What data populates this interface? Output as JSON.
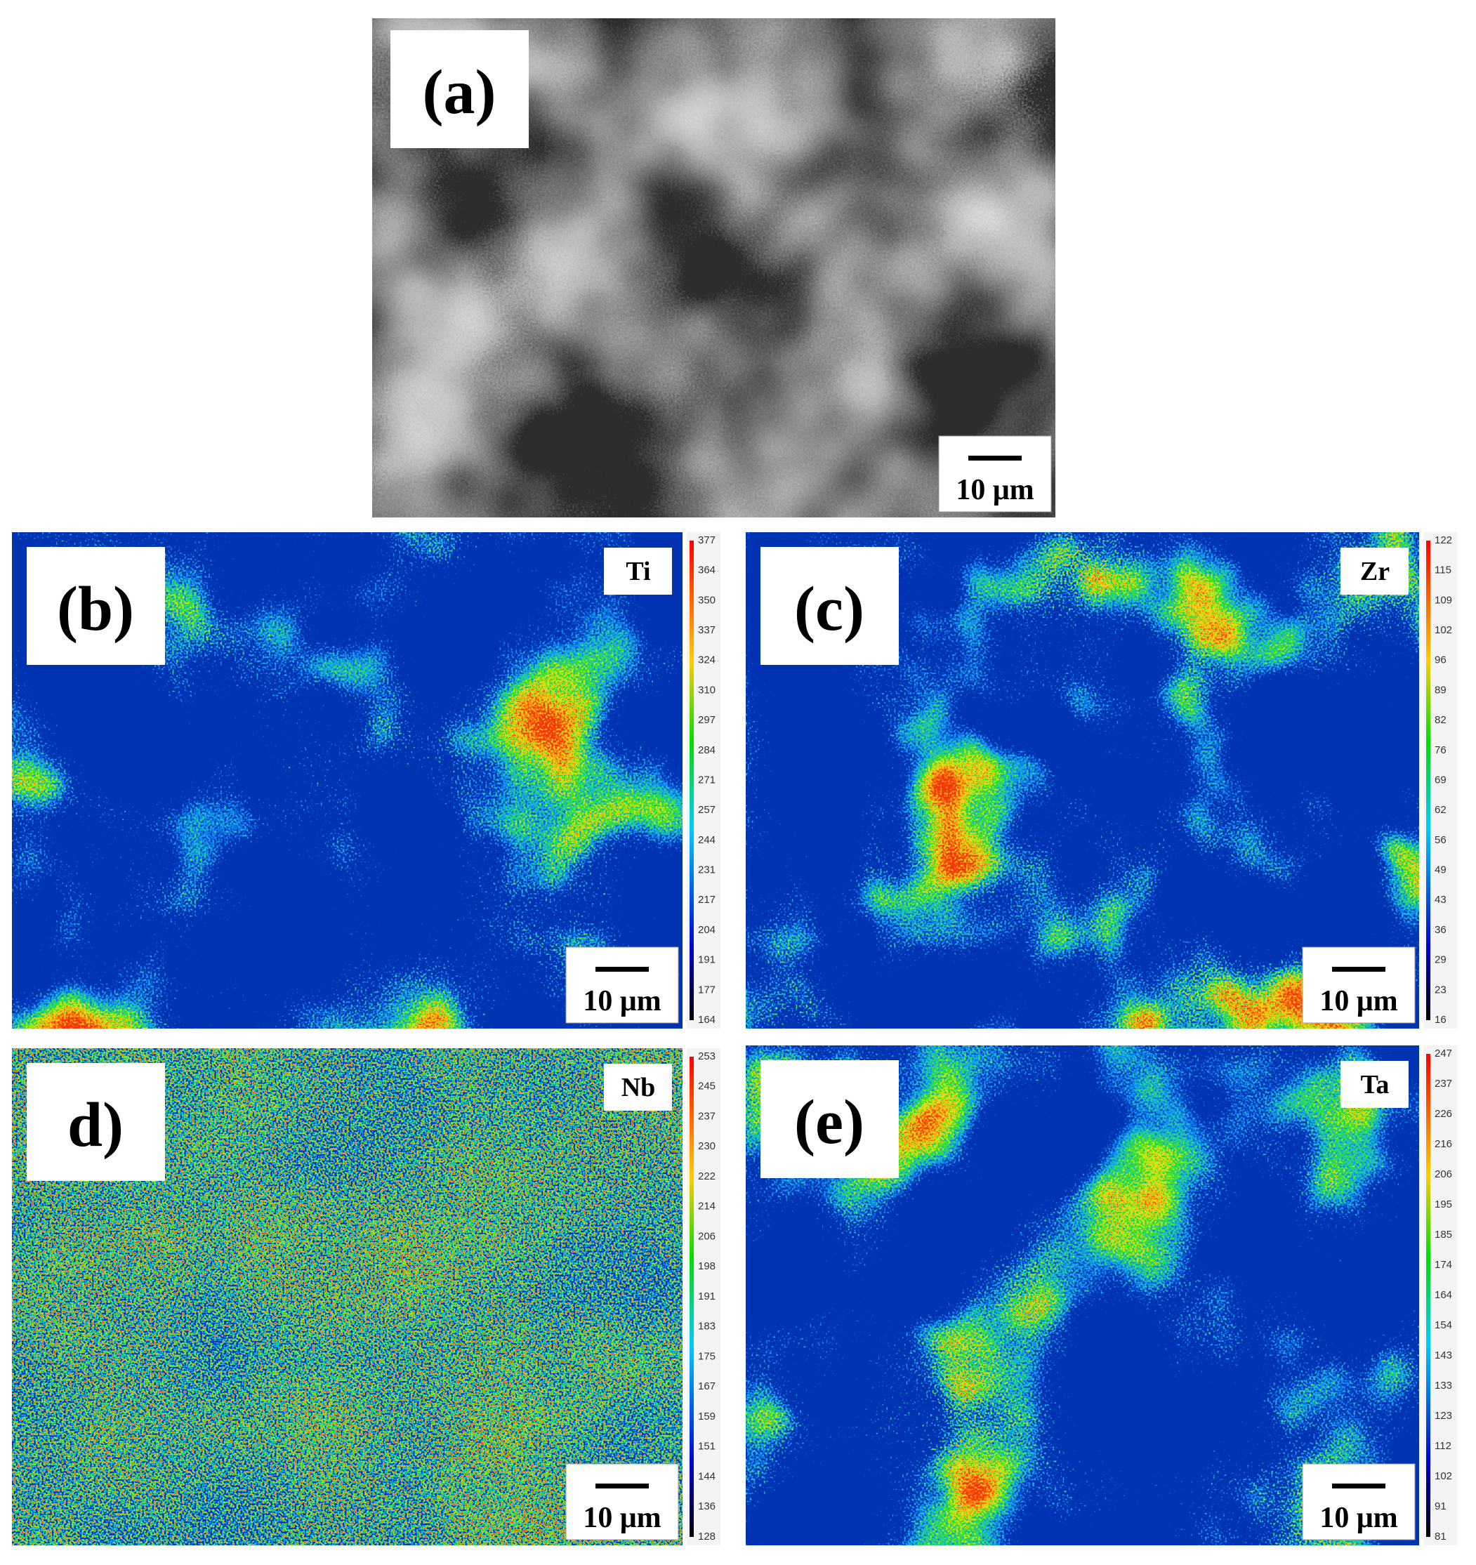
{
  "panels": [
    {
      "label": "(a)",
      "scale_bar": "10 μm"
    },
    {
      "label": "(b)",
      "element": "Ti",
      "scale_bar": "10 μm",
      "colorbar": [
        377,
        364,
        350,
        337,
        324,
        310,
        297,
        284,
        271,
        257,
        244,
        231,
        217,
        204,
        191,
        177,
        164
      ]
    },
    {
      "label": "(c)",
      "element": "Zr",
      "scale_bar": "10 μm",
      "colorbar": [
        122,
        115,
        109,
        102,
        96,
        89,
        82,
        76,
        69,
        62,
        56,
        49,
        43,
        36,
        29,
        23,
        16
      ]
    },
    {
      "label": "d)",
      "element": "Nb",
      "scale_bar": "10 μm",
      "colorbar": [
        253,
        245,
        237,
        230,
        222,
        214,
        206,
        198,
        191,
        183,
        175,
        167,
        159,
        151,
        144,
        136,
        128
      ]
    },
    {
      "label": "(e)",
      "element": "Ta",
      "scale_bar": "10 μm",
      "colorbar": [
        247,
        237,
        226,
        216,
        206,
        195,
        185,
        174,
        164,
        154,
        143,
        133,
        123,
        112,
        102,
        91,
        81
      ]
    }
  ]
}
